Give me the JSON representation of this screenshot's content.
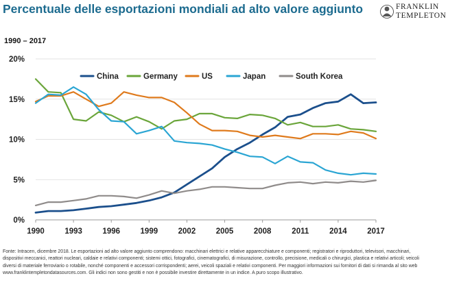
{
  "header": {
    "title": "Percentuale delle esportazioni mondiali ad alto valore aggiunto",
    "logo_line1": "FRANKLIN",
    "logo_line2": "TEMPLETON",
    "period": "1990 – 2017"
  },
  "chart_data": {
    "type": "line",
    "x": [
      1990,
      1991,
      1992,
      1993,
      1994,
      1995,
      1996,
      1997,
      1998,
      1999,
      2000,
      2001,
      2002,
      2003,
      2004,
      2005,
      2006,
      2007,
      2008,
      2009,
      2010,
      2011,
      2012,
      2013,
      2014,
      2015,
      2016,
      2017
    ],
    "xticks": [
      1990,
      1993,
      1996,
      1999,
      2002,
      2005,
      2008,
      2011,
      2014,
      2017
    ],
    "xtick_labels": [
      "1990",
      "1993",
      "1996",
      "1999",
      "2002",
      "2005",
      "2008",
      "2011",
      "2014",
      "2017"
    ],
    "yticks": [
      0,
      5,
      10,
      15,
      20
    ],
    "ytick_labels": [
      "0%",
      "5%",
      "10%",
      "15%",
      "20%"
    ],
    "ylim": [
      0,
      20
    ],
    "xlim": [
      1990,
      2017
    ],
    "grid": "horizontal",
    "legend_position": "top",
    "series": [
      {
        "name": "China",
        "color": "#1b4f8c",
        "values": [
          0.9,
          1.1,
          1.1,
          1.2,
          1.4,
          1.6,
          1.7,
          1.9,
          2.1,
          2.4,
          2.8,
          3.4,
          4.4,
          5.4,
          6.4,
          7.8,
          8.8,
          9.6,
          10.6,
          11.5,
          12.8,
          13.1,
          13.9,
          14.5,
          14.7,
          15.6,
          14.5,
          14.6
        ]
      },
      {
        "name": "Germany",
        "color": "#6aa53a",
        "values": [
          17.5,
          15.9,
          15.8,
          12.5,
          12.3,
          13.4,
          13.0,
          12.2,
          12.8,
          12.2,
          11.3,
          12.3,
          12.5,
          13.2,
          13.2,
          12.7,
          12.6,
          13.1,
          13.0,
          12.6,
          11.8,
          12.1,
          11.6,
          11.6,
          11.8,
          11.3,
          11.2,
          11.0
        ]
      },
      {
        "name": "US",
        "color": "#df7a1c",
        "values": [
          14.7,
          15.4,
          15.4,
          15.9,
          15.0,
          14.1,
          14.5,
          15.9,
          15.5,
          15.2,
          15.2,
          14.6,
          13.3,
          11.9,
          11.1,
          11.1,
          11.0,
          10.5,
          10.3,
          10.5,
          10.3,
          10.1,
          10.7,
          10.7,
          10.6,
          11.0,
          10.8,
          10.1
        ]
      },
      {
        "name": "Japan",
        "color": "#2aa5d3",
        "values": [
          14.5,
          15.6,
          15.5,
          16.5,
          15.6,
          13.7,
          12.3,
          12.2,
          10.7,
          11.1,
          11.6,
          9.8,
          9.6,
          9.5,
          9.3,
          8.8,
          8.4,
          7.9,
          7.8,
          7.0,
          7.9,
          7.2,
          7.1,
          6.2,
          5.8,
          5.6,
          5.8,
          5.7
        ]
      },
      {
        "name": "South Korea",
        "color": "#8f8b8a",
        "values": [
          1.8,
          2.2,
          2.2,
          2.4,
          2.6,
          3.0,
          3.0,
          2.9,
          2.7,
          3.1,
          3.6,
          3.3,
          3.6,
          3.8,
          4.1,
          4.1,
          4.0,
          3.9,
          3.9,
          4.3,
          4.6,
          4.7,
          4.5,
          4.7,
          4.6,
          4.8,
          4.7,
          4.9
        ]
      }
    ]
  },
  "footer": {
    "line1": "Fonte: Intracen, dicembre 2018. Le esportazioni ad alto valore aggiunto comprendono: macchinari elettrici e relative apparecchiature e componenti; registratori e riproduttori, televisori, macchinari,",
    "line2": "dispositivi meccanici, reattori nucleari, caldaie e relativi componenti; sistemi ottici, fotografici, cinematografici, di misurazione, controllo, precisione, medicali o chirurgici, plastica e relativi articoli; veicoli",
    "line3": "diversi di materiale ferroviario o rotabile, nonché componenti e accessori corrispondenti; aerei, veicoli spaziali e relativi componenti. Per maggiori informazioni sui fornitori di dati si rimanda al sito web",
    "line4": "www.franklintempletondatasources.com. Gli indici non sono gestiti e non è possibile investire direttamente in un indice. A puro scopo illustrativo."
  }
}
